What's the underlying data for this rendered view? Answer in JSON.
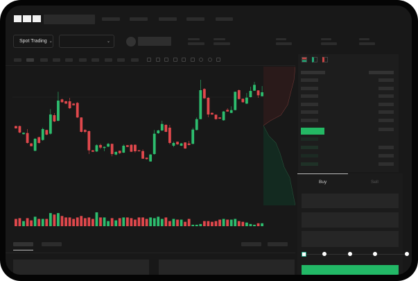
{
  "brand": {
    "logo_text": "OKX"
  },
  "header": {
    "market_selector": "Spot Trading",
    "pair_selector": ""
  },
  "colors": {
    "up": "#2dbd6e",
    "down": "#e0484c",
    "accent": "#22b866",
    "background": "#181818"
  },
  "trade_panel": {
    "tabs": [
      "Buy",
      "Sell"
    ],
    "active_tab": "Buy",
    "slider_percent": 0
  },
  "chart_data": {
    "type": "candlestick",
    "candles": [
      [
        58.3,
        55,
        59,
        54.5
      ],
      [
        58.3,
        49,
        59,
        48
      ],
      [
        46.7,
        48.7,
        49,
        46
      ],
      [
        48.3,
        34,
        54,
        33
      ],
      [
        33.3,
        29.3,
        34,
        29
      ],
      [
        22.7,
        40,
        41,
        22
      ],
      [
        42.3,
        34,
        43,
        33
      ],
      [
        38.3,
        54,
        56,
        37
      ],
      [
        52.7,
        46,
        53,
        45
      ],
      [
        47.3,
        75,
        82.7,
        46
      ],
      [
        74,
        65,
        77,
        64
      ],
      [
        66,
        95,
        107.7,
        65
      ],
      [
        96.7,
        92.7,
        98,
        92
      ],
      [
        94,
        90.7,
        95,
        90
      ],
      [
        94,
        84,
        99,
        83
      ],
      [
        90.7,
        88.3,
        91.5,
        88
      ],
      [
        91.7,
        70.7,
        93,
        70
      ],
      [
        70.7,
        50,
        71,
        49
      ],
      [
        52.7,
        50,
        54,
        48
      ],
      [
        51,
        23.3,
        52,
        18
      ],
      [
        23.3,
        21.3,
        24,
        21
      ],
      [
        21.7,
        30.7,
        32,
        21
      ],
      [
        31,
        27.3,
        33,
        25
      ],
      [
        26.7,
        28.3,
        29,
        22
      ],
      [
        28.7,
        32.7,
        34,
        28
      ],
      [
        32.7,
        18,
        33,
        14.7
      ],
      [
        17.3,
        21,
        22,
        16
      ],
      [
        22.7,
        19.3,
        23,
        18
      ],
      [
        20,
        30,
        31.7,
        19.5
      ],
      [
        30.7,
        28.3,
        31,
        28
      ],
      [
        31.3,
        21.3,
        32,
        21
      ],
      [
        31.3,
        22,
        32,
        20
      ],
      [
        23.3,
        22,
        24,
        21.5
      ],
      [
        22.3,
        11.3,
        24.7,
        11
      ],
      [
        12.7,
        10.7,
        13,
        10
      ],
      [
        7.3,
        17.3,
        18,
        7
      ],
      [
        18,
        47.3,
        52.7,
        17
      ],
      [
        48,
        52,
        53,
        47
      ],
      [
        52,
        61.3,
        66,
        51
      ],
      [
        60,
        50,
        61,
        49.5
      ],
      [
        56,
        34,
        60,
        32
      ],
      [
        30,
        34,
        36,
        28
      ],
      [
        35.7,
        32,
        36,
        31
      ],
      [
        30,
        33.3,
        34,
        29.5
      ],
      [
        34.7,
        26,
        35,
        25.5
      ],
      [
        33.3,
        31,
        37,
        30.5
      ],
      [
        32.7,
        53.3,
        56,
        32
      ],
      [
        52.7,
        68.3,
        70.7,
        52
      ],
      [
        68.3,
        110,
        125,
        68
      ],
      [
        111.7,
        98.3,
        113,
        97.5
      ],
      [
        99,
        75,
        100,
        71
      ],
      [
        77.3,
        75,
        78,
        74.5
      ],
      [
        74.7,
        68.3,
        75,
        67.5
      ],
      [
        70.7,
        69,
        71,
        68.5
      ],
      [
        66.7,
        79.3,
        80,
        66
      ],
      [
        81.7,
        79.3,
        84,
        79
      ],
      [
        77.3,
        81.3,
        86.7,
        77
      ],
      [
        81.3,
        107.7,
        108,
        81
      ],
      [
        110,
        97.3,
        111,
        96.5
      ],
      [
        97.7,
        92.7,
        98,
        92
      ],
      [
        90.7,
        99.3,
        106,
        90
      ],
      [
        100,
        109,
        115,
        99.5
      ],
      [
        109.3,
        117.7,
        122,
        109
      ],
      [
        109.7,
        102.7,
        110,
        99
      ],
      [
        101.3,
        107,
        116,
        101
      ]
    ],
    "volumes": [
      10,
      11,
      7,
      11,
      8,
      13,
      10,
      10,
      10,
      18,
      16,
      18,
      14,
      12,
      12,
      10,
      12,
      14,
      11,
      12,
      10,
      19,
      12,
      12,
      7,
      11,
      8,
      11,
      12,
      12,
      11,
      9,
      12,
      12,
      10,
      12,
      11,
      13,
      10,
      12,
      7,
      10,
      9,
      9,
      6,
      10,
      2,
      2,
      3,
      7,
      7,
      6,
      7,
      9,
      10,
      9,
      9,
      10,
      7,
      6,
      5,
      3,
      2,
      4,
      4
    ],
    "grid": false
  }
}
